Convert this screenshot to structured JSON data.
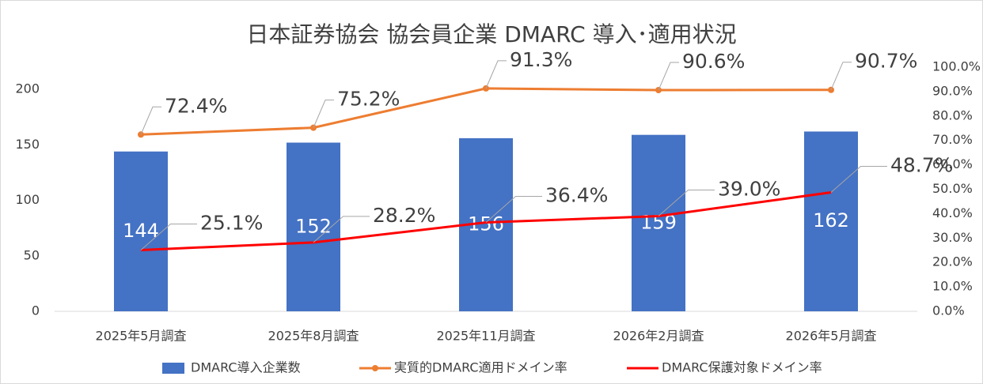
{
  "chart_data": {
    "type": "bar",
    "title": "日本証券協会 協会員企業 DMARC 導入･適用状況",
    "categories": [
      "2025年5月調査",
      "2025年8月調査",
      "2025年11月調査",
      "2026年2月調査",
      "2026年5月調査"
    ],
    "series": [
      {
        "name": "DMARC導入企業数",
        "type": "bar",
        "color": "#4472c4",
        "values": [
          144,
          152,
          156,
          159,
          162
        ]
      },
      {
        "name": "実質的DMARC適用ドメイン率",
        "type": "line",
        "axis": "y2",
        "color": "#ed7d31",
        "marker": true,
        "values": [
          72.4,
          75.2,
          91.3,
          90.6,
          90.7
        ],
        "value_labels": [
          "72.4%",
          "75.2%",
          "91.3%",
          "90.6%",
          "90.7%"
        ]
      },
      {
        "name": "DMARC保護対象ドメイン率",
        "type": "line",
        "axis": "y2",
        "color": "#ff0000",
        "marker": false,
        "values": [
          25.1,
          28.2,
          36.4,
          39.0,
          48.7
        ],
        "value_labels": [
          "25.1%",
          "28.2%",
          "36.4%",
          "39.0%",
          "48.7%"
        ]
      }
    ],
    "ylim": [
      0,
      220
    ],
    "yticks": [
      0,
      50,
      100,
      150,
      200
    ],
    "y2lim": [
      0,
      100
    ],
    "y2ticks": [
      {
        "value": 0,
        "label": "0.0%"
      },
      {
        "value": 10,
        "label": "10.0%"
      },
      {
        "value": 20,
        "label": "20.0%"
      },
      {
        "value": 30,
        "label": "30.0%"
      },
      {
        "value": 40,
        "label": "40.0%"
      },
      {
        "value": 50,
        "label": "50.0%"
      },
      {
        "value": 60,
        "label": "60.0%"
      },
      {
        "value": 70,
        "label": "70.0%"
      },
      {
        "value": 80,
        "label": "80.0%"
      },
      {
        "value": 90,
        "label": "90.0%"
      },
      {
        "value": 100,
        "label": "100.0%"
      }
    ],
    "grid": false,
    "legend": "bottom"
  }
}
